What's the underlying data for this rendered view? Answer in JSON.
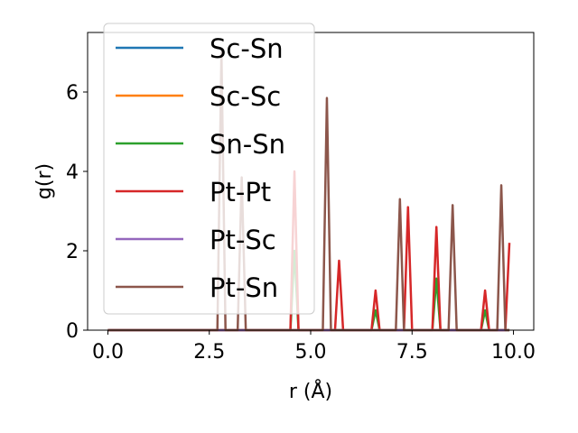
{
  "chart_data": {
    "type": "line",
    "title": "",
    "xlabel": "r (Å)",
    "ylabel": "g(r)",
    "xlim": [
      -0.5,
      10.5
    ],
    "ylim": [
      0,
      7.5
    ],
    "xticks": [
      0.0,
      2.5,
      5.0,
      7.5,
      10.0
    ],
    "xtick_labels": [
      "0.0",
      "2.5",
      "5.0",
      "7.5",
      "10.0"
    ],
    "yticks": [
      0,
      2,
      4,
      6
    ],
    "ytick_labels": [
      "0",
      "2",
      "4",
      "6"
    ],
    "grid": false,
    "legend_position": "upper-left",
    "x": [
      0.0,
      0.1,
      0.2,
      0.3,
      0.4,
      0.5,
      0.6,
      0.7,
      0.8,
      0.9,
      1.0,
      1.1,
      1.2,
      1.3,
      1.4,
      1.5,
      1.6,
      1.7,
      1.8,
      1.9,
      2.0,
      2.1,
      2.2,
      2.3,
      2.4,
      2.5,
      2.6,
      2.7,
      2.8,
      2.9,
      3.0,
      3.1,
      3.2,
      3.3,
      3.4,
      3.5,
      3.6,
      3.7,
      3.8,
      3.9,
      4.0,
      4.1,
      4.2,
      4.3,
      4.4,
      4.5,
      4.6,
      4.7,
      4.8,
      4.9,
      5.0,
      5.1,
      5.2,
      5.3,
      5.4,
      5.5,
      5.6,
      5.7,
      5.8,
      5.9,
      6.0,
      6.1,
      6.2,
      6.3,
      6.4,
      6.5,
      6.6,
      6.7,
      6.8,
      6.9,
      7.0,
      7.1,
      7.2,
      7.3,
      7.4,
      7.5,
      7.6,
      7.7,
      7.8,
      7.9,
      8.0,
      8.1,
      8.2,
      8.3,
      8.4,
      8.5,
      8.6,
      8.7,
      8.8,
      8.9,
      9.0,
      9.1,
      9.2,
      9.3,
      9.4,
      9.5,
      9.6,
      9.7,
      9.8,
      9.9
    ],
    "series": [
      {
        "name": "Sc-Sn",
        "color": "#1f77b4",
        "values": [
          0,
          0,
          0,
          0,
          0,
          0,
          0,
          0,
          0,
          0,
          0,
          0,
          0,
          0,
          0,
          0,
          0,
          0,
          0,
          0,
          0,
          0,
          0,
          0,
          0,
          0,
          0,
          0,
          0,
          0,
          0,
          0,
          0,
          0,
          0,
          0,
          0,
          0,
          0,
          0,
          0,
          0,
          0,
          0,
          0,
          0,
          0,
          0,
          0,
          0,
          0,
          0,
          0,
          0,
          0,
          0,
          0,
          0,
          0,
          0,
          0,
          0,
          0,
          0,
          0,
          0,
          0,
          0,
          0,
          0,
          0,
          0,
          0,
          0,
          0,
          0,
          0,
          0,
          0,
          0,
          0,
          0,
          0,
          0,
          0,
          0,
          0,
          0,
          0,
          0,
          0,
          0,
          0,
          0,
          0,
          0,
          0,
          0,
          0,
          0
        ]
      },
      {
        "name": "Sc-Sc",
        "color": "#ff7f0e",
        "values": [
          0,
          0,
          0,
          0,
          0,
          0,
          0,
          0,
          0,
          0,
          0,
          0,
          0,
          0,
          0,
          0,
          0,
          0,
          0,
          0,
          0,
          0,
          0,
          0,
          0,
          0,
          0,
          0,
          0,
          0,
          0,
          0,
          0,
          0,
          0,
          0,
          0,
          0,
          0,
          0,
          0,
          0,
          0,
          0,
          0,
          0,
          0,
          0,
          0,
          0,
          0,
          0,
          0,
          0,
          0,
          0,
          0,
          0,
          0,
          0,
          0,
          0,
          0,
          0,
          0,
          0,
          0,
          0,
          0,
          0,
          0,
          0,
          0,
          0,
          0,
          0,
          0,
          0,
          0,
          0,
          0,
          0,
          0,
          0,
          0,
          0,
          0,
          0,
          0,
          0,
          0,
          0,
          0,
          0,
          0,
          0,
          0,
          0,
          0,
          0
        ]
      },
      {
        "name": "Sn-Sn",
        "color": "#2ca02c",
        "values": [
          0,
          0,
          0,
          0,
          0,
          0,
          0,
          0,
          0,
          0,
          0,
          0,
          0,
          0,
          0,
          0,
          0,
          0,
          0,
          0,
          0,
          0,
          0,
          0,
          0,
          0,
          0,
          0,
          0,
          0,
          0,
          0,
          0,
          0,
          0,
          0,
          0,
          0,
          0,
          0,
          0,
          0,
          0,
          0,
          0,
          0,
          2.0,
          0,
          0,
          0,
          0,
          0,
          0,
          0,
          0,
          0,
          0,
          0,
          0,
          0,
          0,
          0,
          0,
          0,
          0,
          0,
          0.5,
          0,
          0,
          0,
          0,
          0,
          0,
          0,
          0,
          0,
          0,
          0,
          0,
          0,
          0,
          1.3,
          0,
          0,
          0,
          0,
          0,
          0,
          0,
          0,
          0,
          0,
          0,
          0.5,
          0,
          0,
          0,
          0,
          0,
          0
        ]
      },
      {
        "name": "Pt-Pt",
        "color": "#d62728",
        "values": [
          0,
          0,
          0,
          0,
          0,
          0,
          0,
          0,
          0,
          0,
          0,
          0,
          0,
          0,
          0,
          0,
          0,
          0,
          0,
          0,
          0,
          0,
          0,
          0,
          0,
          0,
          0,
          0,
          0,
          0,
          0,
          0,
          0,
          0,
          0,
          0,
          0,
          0,
          0,
          0,
          0,
          0,
          0,
          0,
          0,
          0,
          4.0,
          0,
          0,
          0,
          0,
          0,
          0,
          0,
          0,
          0,
          0,
          1.75,
          0,
          0,
          0,
          0,
          0,
          0,
          0,
          0,
          1.0,
          0,
          0,
          0,
          0,
          0,
          0,
          0,
          3.1,
          0,
          0,
          0,
          0,
          0,
          0,
          2.6,
          0,
          0,
          0,
          0,
          0,
          0,
          0,
          0,
          0,
          0,
          0,
          1.0,
          0,
          0,
          0,
          0,
          0,
          2.2
        ]
      },
      {
        "name": "Pt-Sc",
        "color": "#9467bd",
        "values": [
          0,
          0,
          0,
          0,
          0,
          0,
          0,
          0,
          0,
          0,
          0,
          0,
          0,
          0,
          0,
          0,
          0,
          0,
          0,
          0,
          0,
          0,
          0,
          0,
          0,
          0,
          0,
          0,
          0,
          0,
          0,
          0,
          0,
          0,
          0,
          0,
          0,
          0,
          0,
          0,
          0,
          0,
          0,
          0,
          0,
          0,
          0,
          0,
          0,
          0,
          0,
          0,
          0,
          0,
          0,
          0,
          0,
          0,
          0,
          0,
          0,
          0,
          0,
          0,
          0,
          0,
          0,
          0,
          0,
          0,
          0,
          0,
          0,
          0,
          0,
          0,
          0,
          0,
          0,
          0,
          0,
          0,
          0,
          0,
          0,
          0,
          0,
          0,
          0,
          0,
          0,
          0,
          0,
          0,
          0,
          0,
          0,
          0,
          0,
          0
        ]
      },
      {
        "name": "Pt-Sn",
        "color": "#8c564b",
        "values": [
          0,
          0,
          0,
          0,
          0,
          0,
          0,
          0,
          0,
          0,
          0,
          0,
          0,
          0,
          0,
          0,
          0,
          0,
          0,
          0,
          0,
          0,
          0,
          0,
          0,
          0,
          0,
          0,
          7.0,
          0,
          0,
          0,
          0,
          3.85,
          0,
          0,
          0,
          0,
          0,
          0,
          0,
          0,
          0,
          0,
          0,
          0,
          0,
          0,
          0,
          0,
          0,
          0,
          0,
          0,
          5.85,
          0,
          0,
          0,
          0,
          0,
          0,
          0,
          0,
          0,
          0,
          0,
          0,
          0,
          0,
          0,
          0,
          0,
          3.3,
          0,
          0,
          0,
          0,
          0,
          0,
          0,
          0,
          0,
          0,
          0,
          0,
          3.15,
          0,
          0,
          0,
          0,
          0,
          0,
          0,
          0,
          0,
          0,
          0,
          3.65,
          0,
          0
        ]
      }
    ]
  }
}
